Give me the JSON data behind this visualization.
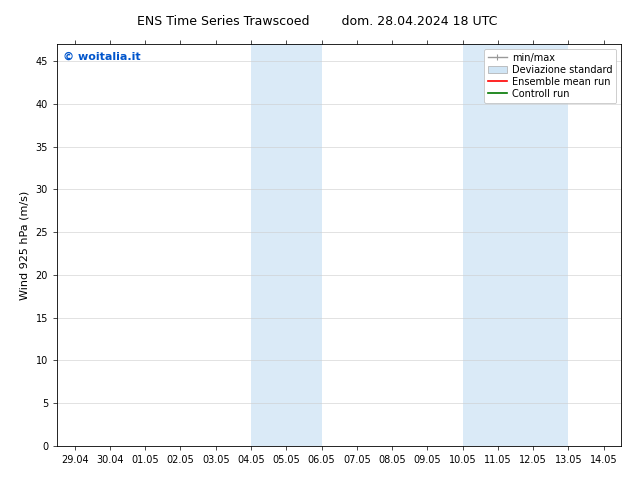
{
  "title_left": "ENS Time Series Trawscoed",
  "title_right": "dom. 28.04.2024 18 UTC",
  "ylabel": "Wind 925 hPa (m/s)",
  "watermark": "© woitalia.it",
  "x_tick_labels": [
    "29.04",
    "30.04",
    "01.05",
    "02.05",
    "03.05",
    "04.05",
    "05.05",
    "06.05",
    "07.05",
    "08.05",
    "09.05",
    "10.05",
    "11.05",
    "12.05",
    "13.05",
    "14.05"
  ],
  "x_tick_positions": [
    0,
    1,
    2,
    3,
    4,
    5,
    6,
    7,
    8,
    9,
    10,
    11,
    12,
    13,
    14,
    15
  ],
  "ylim": [
    0,
    47
  ],
  "yticks": [
    0,
    5,
    10,
    15,
    20,
    25,
    30,
    35,
    40,
    45
  ],
  "background_color": "#ffffff",
  "plot_bg_color": "#ffffff",
  "shaded_bands": [
    {
      "x_start": 5,
      "x_end": 7,
      "color": "#daeaf7"
    },
    {
      "x_start": 11,
      "x_end": 14,
      "color": "#daeaf7"
    }
  ],
  "legend_items": [
    {
      "label": "min/max",
      "type": "minmax",
      "color": "#999999"
    },
    {
      "label": "Deviazione standard",
      "type": "patch",
      "color": "#d0e5f5"
    },
    {
      "label": "Ensemble mean run",
      "type": "line",
      "color": "#ff0000",
      "lw": 1.2
    },
    {
      "label": "Controll run",
      "type": "line",
      "color": "#007700",
      "lw": 1.2
    }
  ],
  "title_fontsize": 9,
  "tick_fontsize": 7,
  "ylabel_fontsize": 8,
  "watermark_color": "#0055cc",
  "watermark_fontsize": 8,
  "legend_fontsize": 7,
  "spine_color": "#000000",
  "grid_color": "#cccccc"
}
